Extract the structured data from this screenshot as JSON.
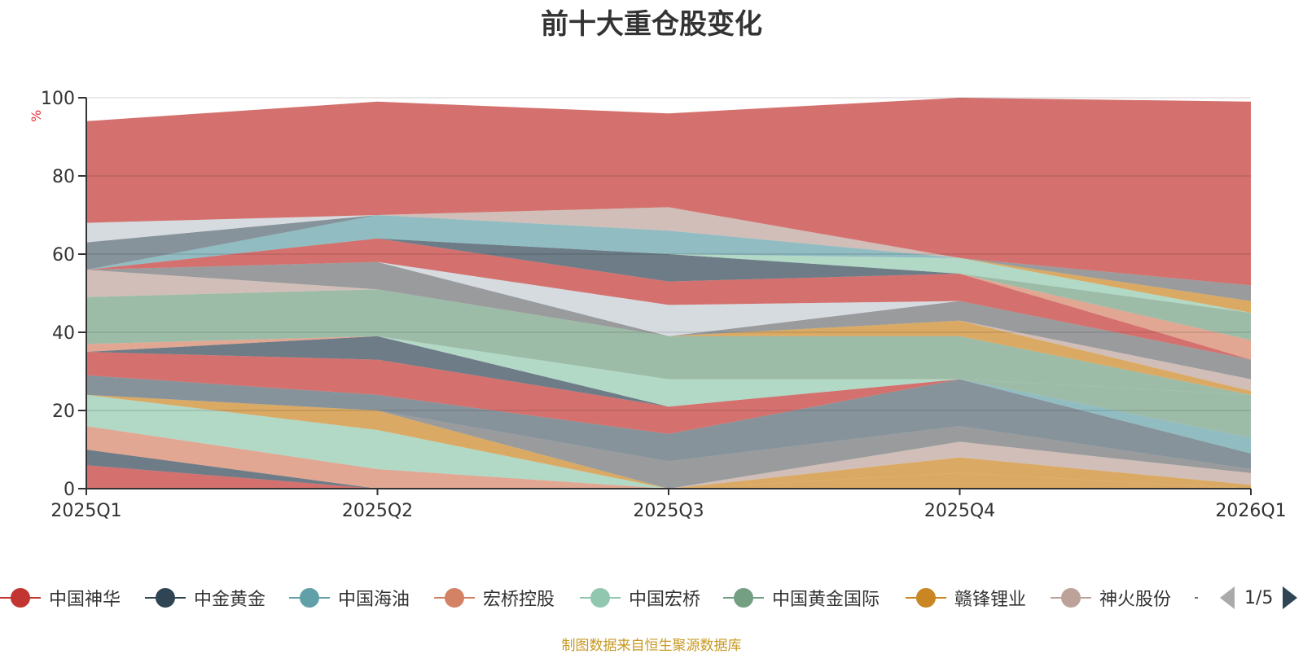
{
  "chart_data": {
    "type": "area",
    "title": "前十大重仓股变化",
    "ylabel": "%",
    "ylim": [
      0,
      100
    ],
    "yticks": [
      0,
      20,
      40,
      60,
      80,
      100
    ],
    "categories": [
      "2025Q1",
      "2025Q2",
      "2025Q3",
      "2025Q4",
      "2026Q1"
    ],
    "grid": true,
    "legend_position": "bottom",
    "stack_bands": [
      {
        "color": "#c23531",
        "lower": [
          0,
          0,
          0,
          0,
          0
        ],
        "upper": [
          6,
          0,
          0,
          0,
          0
        ]
      },
      {
        "color": "#2f4554",
        "lower": [
          6,
          0,
          0,
          0,
          0
        ],
        "upper": [
          10,
          0,
          0,
          0,
          0
        ]
      },
      {
        "color": "#d48265",
        "lower": [
          10,
          0,
          0,
          0,
          0
        ],
        "upper": [
          16,
          5,
          0,
          0,
          0
        ]
      },
      {
        "color": "#91c7ae",
        "lower": [
          16,
          5,
          0,
          0,
          0
        ],
        "upper": [
          24,
          15,
          0,
          0,
          0
        ]
      },
      {
        "color": "#ca8622",
        "lower": [
          24,
          15,
          0,
          0,
          0
        ],
        "upper": [
          24,
          20,
          0,
          0,
          0
        ]
      },
      {
        "color": "#ca8622",
        "lower": [
          0,
          0,
          0,
          0,
          0
        ],
        "upper": [
          0,
          0,
          0,
          4,
          0
        ]
      },
      {
        "color": "#ca8622",
        "lower": [
          0,
          0,
          0,
          4,
          0
        ],
        "upper": [
          0,
          0,
          0,
          8,
          1
        ]
      },
      {
        "color": "#bda29a",
        "lower": [
          0,
          0,
          0,
          8,
          1
        ],
        "upper": [
          0,
          0,
          0,
          12,
          4
        ]
      },
      {
        "color": "#6e7074",
        "lower": [
          0,
          20,
          0,
          12,
          4
        ],
        "upper": [
          0,
          20,
          7,
          16,
          5
        ]
      },
      {
        "color": "#546570",
        "lower": [
          24,
          20,
          7,
          16,
          5
        ],
        "upper": [
          29,
          24,
          14,
          28,
          9
        ]
      },
      {
        "color": "#61a0a8",
        "lower": [
          0,
          0,
          0,
          28,
          9
        ],
        "upper": [
          0,
          0,
          0,
          28,
          13
        ]
      },
      {
        "color": "#749f83",
        "lower": [
          0,
          0,
          0,
          28,
          13
        ],
        "upper": [
          0,
          0,
          0,
          28,
          24
        ]
      },
      {
        "color": "#c23531",
        "lower": [
          29,
          24,
          14,
          28,
          24
        ],
        "upper": [
          35,
          33,
          21,
          28,
          24
        ]
      },
      {
        "color": "#2f4554",
        "lower": [
          35,
          33,
          21,
          28,
          24
        ],
        "upper": [
          35,
          39,
          21,
          28,
          24
        ]
      },
      {
        "color": "#91c7ae",
        "lower": [
          35,
          39,
          21,
          28,
          24
        ],
        "upper": [
          35,
          39,
          28,
          28,
          24
        ]
      },
      {
        "color": "#d48265",
        "lower": [
          35,
          39,
          28,
          28,
          24
        ],
        "upper": [
          37,
          39,
          28,
          28,
          24
        ]
      },
      {
        "color": "#749f83",
        "lower": [
          37,
          39,
          28,
          28,
          24
        ],
        "upper": [
          49,
          51,
          39,
          39,
          24
        ]
      },
      {
        "color": "#ca8622",
        "lower": [
          49,
          51,
          39,
          39,
          24
        ],
        "upper": [
          49,
          51,
          39,
          43,
          25
        ]
      },
      {
        "color": "#bda29a",
        "lower": [
          49,
          51,
          39,
          43,
          25
        ],
        "upper": [
          56,
          51,
          39,
          43,
          28
        ]
      },
      {
        "color": "#6e7074",
        "lower": [
          56,
          51,
          39,
          43,
          28
        ],
        "upper": [
          56,
          58,
          39,
          48,
          33
        ]
      },
      {
        "color": "#c4ccd3",
        "lower": [
          56,
          58,
          39,
          48,
          33
        ],
        "upper": [
          56,
          58,
          47,
          48,
          33
        ]
      },
      {
        "color": "#c23531",
        "lower": [
          56,
          58,
          47,
          48,
          33
        ],
        "upper": [
          56,
          64,
          53,
          55,
          33
        ]
      },
      {
        "color": "#d48265",
        "lower": [
          56,
          64,
          53,
          55,
          33
        ],
        "upper": [
          56,
          64,
          53,
          55,
          38
        ]
      },
      {
        "color": "#749f83",
        "lower": [
          56,
          64,
          53,
          55,
          38
        ],
        "upper": [
          56,
          64,
          53,
          55,
          45
        ]
      },
      {
        "color": "#2f4554",
        "lower": [
          56,
          64,
          53,
          55,
          45
        ],
        "upper": [
          56,
          64,
          60,
          55,
          45
        ]
      },
      {
        "color": "#91c7ae",
        "lower": [
          56,
          64,
          60,
          55,
          45
        ],
        "upper": [
          56,
          64,
          60,
          59,
          45
        ]
      },
      {
        "color": "#ca8622",
        "lower": [
          56,
          64,
          60,
          59,
          45
        ],
        "upper": [
          56,
          64,
          60,
          59,
          48
        ]
      },
      {
        "color": "#6e7074",
        "lower": [
          56,
          64,
          60,
          59,
          48
        ],
        "upper": [
          56,
          64,
          60,
          59,
          52
        ]
      },
      {
        "color": "#61a0a8",
        "lower": [
          56,
          64,
          60,
          59,
          52
        ],
        "upper": [
          56,
          70,
          66,
          59,
          52
        ]
      },
      {
        "color": "#546570",
        "lower": [
          56,
          70,
          66,
          59,
          52
        ],
        "upper": [
          63,
          70,
          66,
          59,
          52
        ]
      },
      {
        "color": "#bda29a",
        "lower": [
          63,
          70,
          66,
          59,
          52
        ],
        "upper": [
          63,
          70,
          72,
          59,
          52
        ]
      },
      {
        "color": "#c4ccd3",
        "lower": [
          63,
          70,
          72,
          59,
          52
        ],
        "upper": [
          68,
          70,
          72,
          59,
          52
        ]
      },
      {
        "color": "#c23531",
        "lower": [
          68,
          70,
          72,
          59,
          52
        ],
        "upper": [
          94,
          99,
          96,
          100,
          99
        ]
      }
    ]
  },
  "legend": {
    "items": [
      {
        "label": "中国神华",
        "color": "#c23531"
      },
      {
        "label": "中金黄金",
        "color": "#2f4554"
      },
      {
        "label": "中国海油",
        "color": "#61a0a8"
      },
      {
        "label": "宏桥控股",
        "color": "#d48265"
      },
      {
        "label": "中国宏桥",
        "color": "#91c7ae"
      },
      {
        "label": "中国黄金国际",
        "color": "#749f83"
      },
      {
        "label": "赣锋锂业",
        "color": "#ca8622"
      },
      {
        "label": "神火股份",
        "color": "#bda29a"
      }
    ],
    "pager": "1/5"
  },
  "source": "制图数据来自恒生聚源数据库"
}
